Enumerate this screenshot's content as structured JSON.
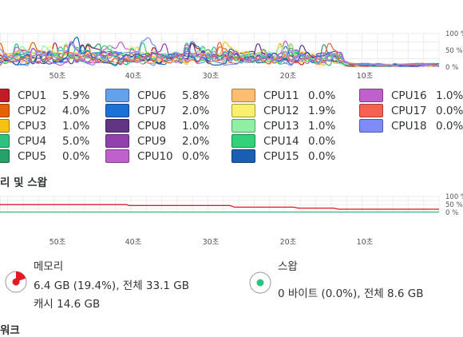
{
  "cpu": {
    "x_ticks": [
      "50초",
      "40초",
      "30초",
      "20초",
      "10초"
    ],
    "y_ticks": [
      "100 %",
      "50 %",
      "0 %"
    ],
    "legend": [
      {
        "name": "CPU1",
        "value": "5.9%",
        "color": "#c01c28"
      },
      {
        "name": "CPU2",
        "value": "4.0%",
        "color": "#e66100"
      },
      {
        "name": "CPU3",
        "value": "1.0%",
        "color": "#f5c211"
      },
      {
        "name": "CPU4",
        "value": "5.0%",
        "color": "#2ec27e"
      },
      {
        "name": "CPU5",
        "value": "0.0%",
        "color": "#26a269"
      },
      {
        "name": "CPU6",
        "value": "5.8%",
        "color": "#62a0ea"
      },
      {
        "name": "CPU7",
        "value": "2.0%",
        "color": "#1c71d8"
      },
      {
        "name": "CPU8",
        "value": "1.0%",
        "color": "#613583"
      },
      {
        "name": "CPU9",
        "value": "2.0%",
        "color": "#9141ac"
      },
      {
        "name": "CPU10",
        "value": "0.0%",
        "color": "#c061cb"
      },
      {
        "name": "CPU11",
        "value": "0.0%",
        "color": "#ffbe6f"
      },
      {
        "name": "CPU12",
        "value": "1.9%",
        "color": "#f9f06b"
      },
      {
        "name": "CPU13",
        "value": "1.0%",
        "color": "#8ff0a4"
      },
      {
        "name": "CPU14",
        "value": "0.0%",
        "color": "#33d17a"
      },
      {
        "name": "CPU15",
        "value": "0.0%",
        "color": "#1a5fb4"
      },
      {
        "name": "CPU16",
        "value": "1.0%",
        "color": "#c061cb"
      },
      {
        "name": "CPU17",
        "value": "0.0%",
        "color": "#f66151"
      },
      {
        "name": "CPU18",
        "value": "0.0%",
        "color": "#7f8cf7"
      }
    ]
  },
  "memory_section": {
    "title": "리 및 스왑",
    "x_ticks": [
      "50초",
      "40초",
      "30초",
      "20초",
      "10초"
    ],
    "y_ticks": [
      "100 %",
      "50 %",
      "0 %"
    ],
    "memory": {
      "label": "메모리",
      "usage": "6.4 GB (19.4%), 전체 33.1 GB",
      "cache": "캐시 14.6 GB",
      "color": "#e01b24",
      "fraction": 0.194
    },
    "swap": {
      "label": "스왑",
      "usage": "0 바이트 (0.0%), 전체 8.6 GB",
      "color": "#2ec27e",
      "fraction": 0.0
    }
  },
  "network_section": {
    "title": "워크"
  }
}
